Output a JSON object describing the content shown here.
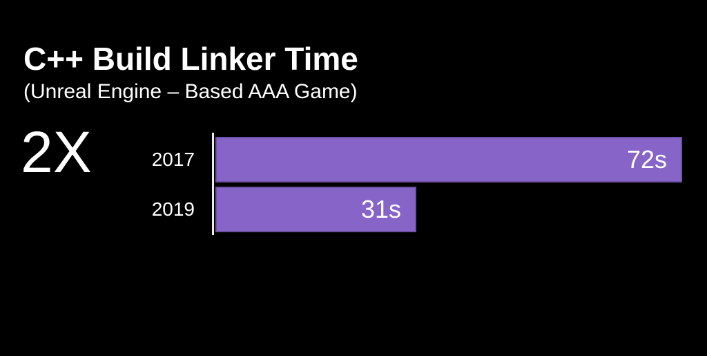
{
  "slide": {
    "title": "C++ Build Linker Time",
    "subtitle": "(Unreal Engine – Based AAA Game)",
    "highlight": "2X"
  },
  "chart_data": {
    "type": "bar",
    "orientation": "horizontal",
    "title": "C++ Build Linker Time",
    "subtitle": "(Unreal Engine – Based AAA Game)",
    "annotation": "2X",
    "categories": [
      "2017",
      "2019"
    ],
    "values": [
      72,
      31
    ],
    "value_labels": [
      "72s",
      "31s"
    ],
    "unit": "s",
    "xlim": [
      0,
      72
    ],
    "grid": false,
    "legend": "none",
    "colors": {
      "bar": "#8764C8",
      "background": "#000000",
      "text": "#FFFFFF",
      "axis_line": "#EFECE5"
    }
  }
}
